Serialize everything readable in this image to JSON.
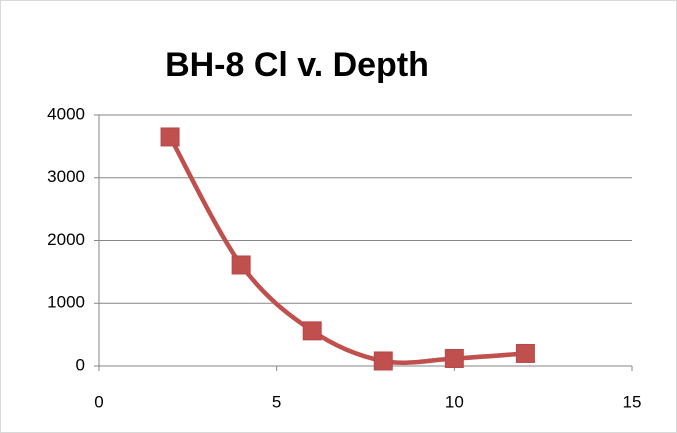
{
  "chart_data": {
    "type": "scatter",
    "smooth": true,
    "title": "BH-8 Cl v. Depth",
    "x": [
      2,
      4,
      6,
      8,
      10,
      12
    ],
    "series": [
      {
        "color": "#c0504d",
        "values": [
          3650,
          1610,
          560,
          80,
          120,
          200
        ]
      }
    ],
    "xlim": [
      0,
      15
    ],
    "xticks": [
      0,
      5,
      10,
      15
    ],
    "ylim": [
      0,
      4000
    ],
    "yticks": [
      0,
      1000,
      2000,
      3000,
      4000
    ],
    "grid": true
  }
}
